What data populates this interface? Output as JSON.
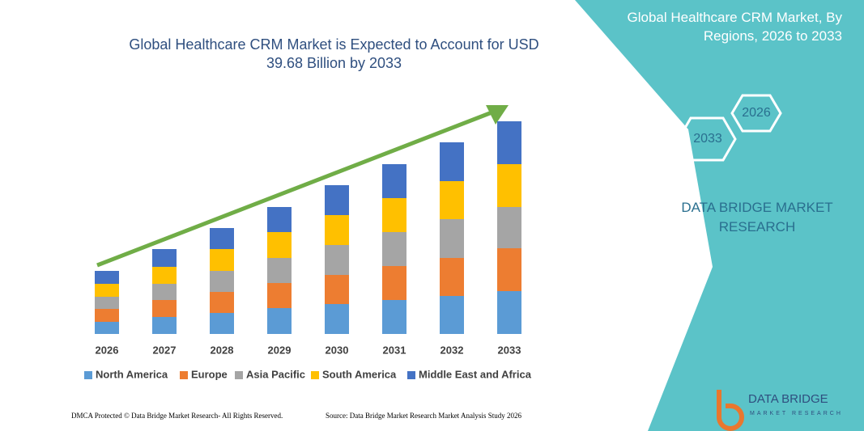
{
  "chart_data": {
    "type": "bar",
    "stacked": true,
    "title": "Global Healthcare CRM Market is Expected to Account for USD 39.68 Billion by 2033",
    "categories": [
      "2026",
      "2027",
      "2028",
      "2029",
      "2030",
      "2031",
      "2032",
      "2033"
    ],
    "series": [
      {
        "name": "North America",
        "color": "#5b9bd5",
        "values": [
          15,
          21,
          26,
          32,
          37,
          42,
          47,
          53
        ]
      },
      {
        "name": "Europe",
        "color": "#ed7d31",
        "values": [
          16,
          21,
          26,
          31,
          36,
          42,
          47,
          53
        ]
      },
      {
        "name": "Asia Pacific",
        "color": "#a5a5a5",
        "values": [
          15,
          20,
          26,
          31,
          37,
          42,
          48,
          51
        ]
      },
      {
        "name": "South America",
        "color": "#ffc000",
        "values": [
          16,
          21,
          27,
          32,
          37,
          42,
          47,
          53
        ]
      },
      {
        "name": "Middle East and Africa",
        "color": "#4472c4",
        "values": [
          16,
          22,
          26,
          31,
          37,
          42,
          48,
          53
        ]
      }
    ],
    "ylim": [
      0,
      270
    ]
  },
  "panel": {
    "title": "Global Healthcare CRM Market, By Regions, 2026 to 2033",
    "hex_1": "2026",
    "hex_2": "2033",
    "brand": "DATA BRIDGE MARKET RESEARCH"
  },
  "footer": {
    "left": "DMCA Protected © Data Bridge Market Research- All Rights Reserved.",
    "right": "Source: Data Bridge Market Research Market Analysis Study 2026"
  },
  "logo": {
    "name": "DATA BRIDGE",
    "tagline": "MARKET RESEARCH"
  }
}
